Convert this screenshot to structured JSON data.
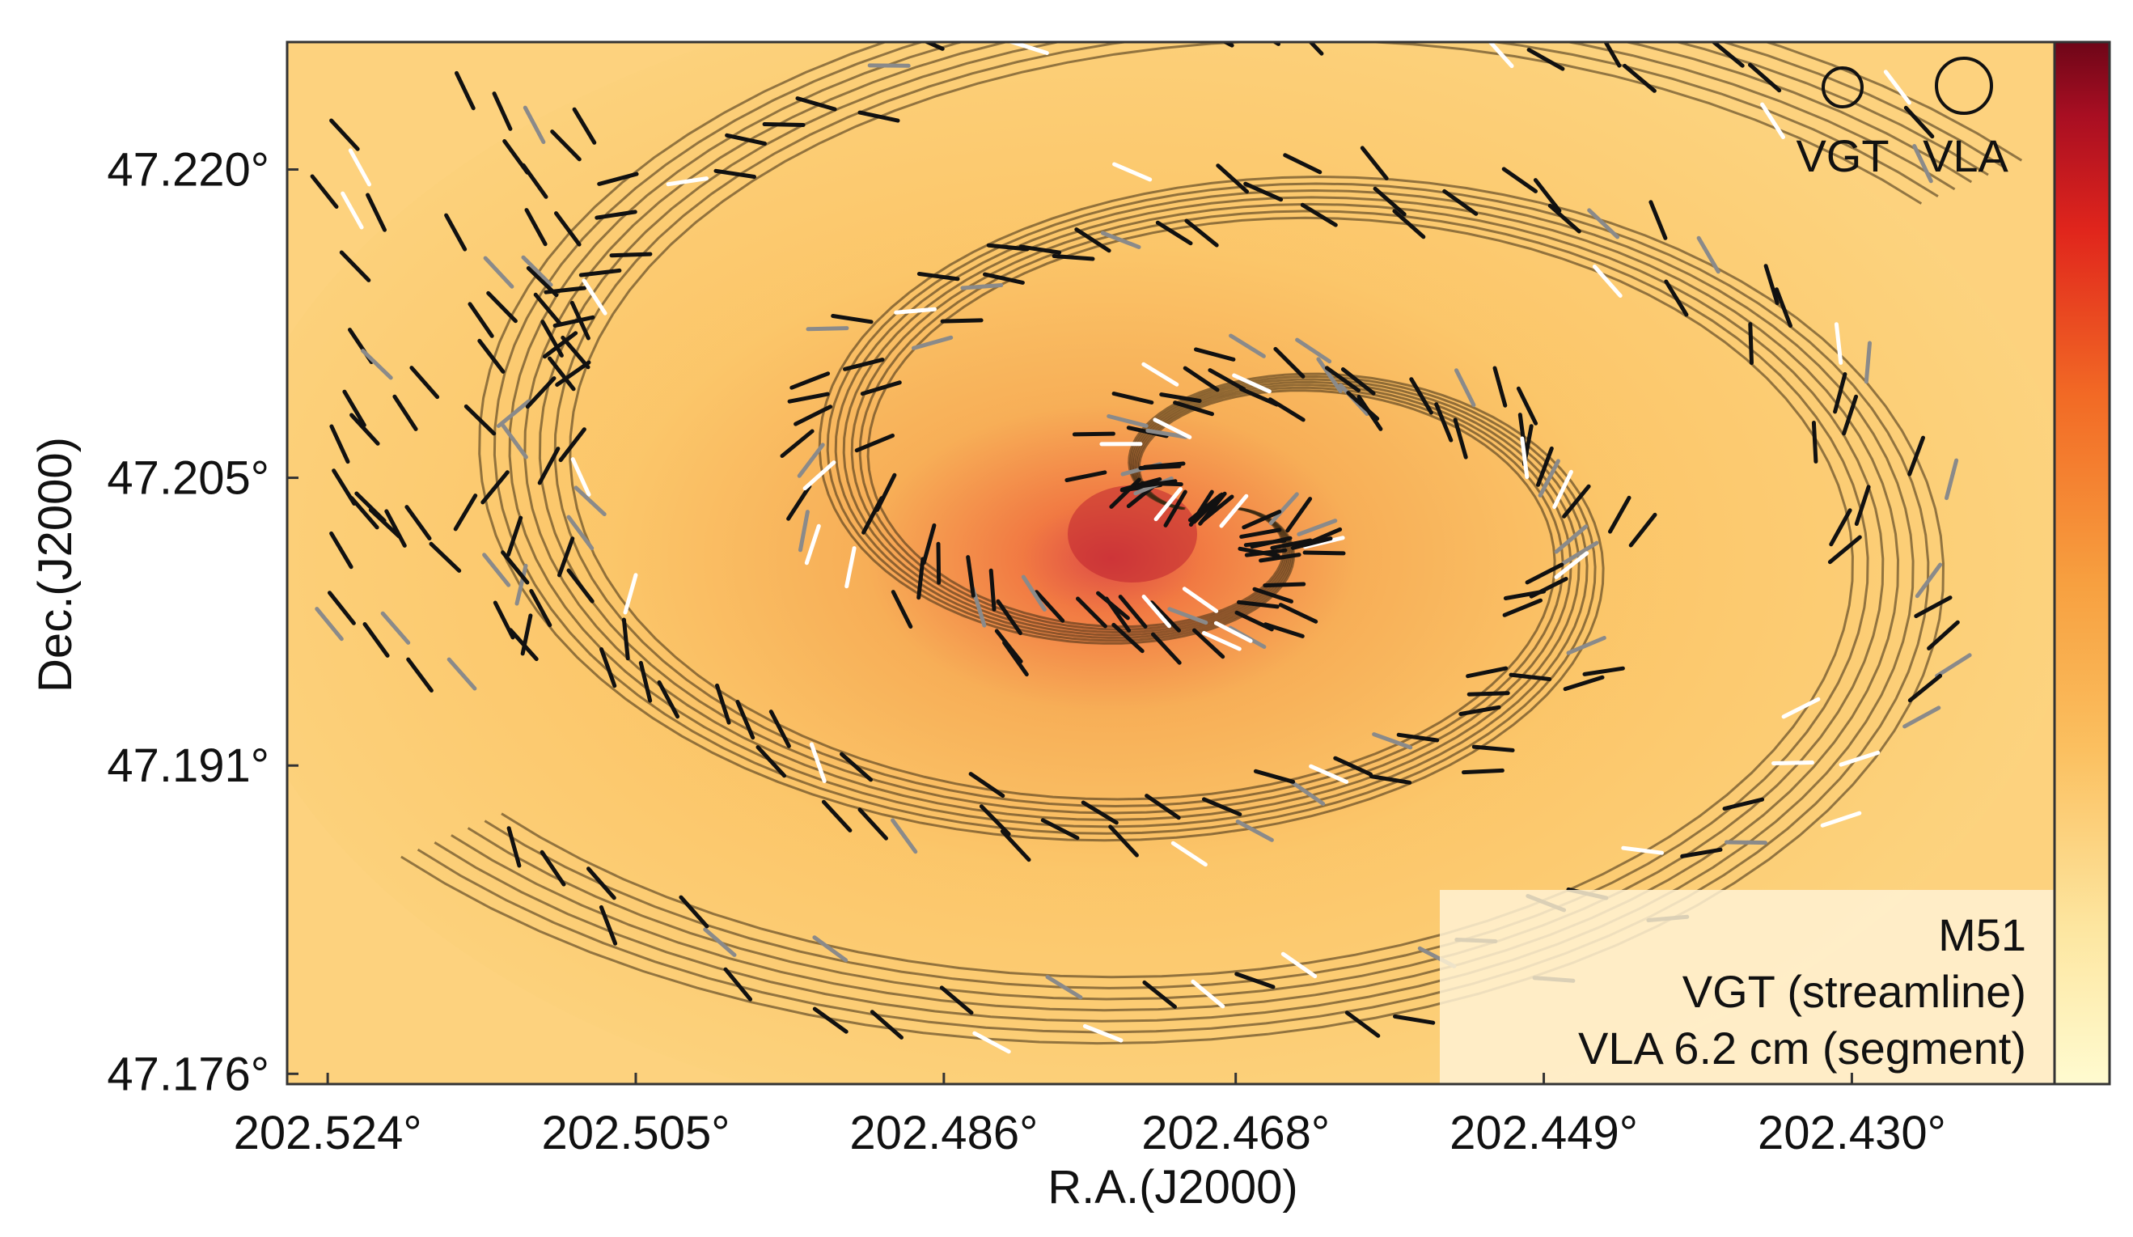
{
  "chart_data": {
    "type": "scatter",
    "xlabel": "R.A.(J2000)",
    "ylabel": "Dec.(J2000)",
    "x_ticks": [
      "202.524°",
      "202.505°",
      "202.486°",
      "202.468°",
      "202.449°",
      "202.430°"
    ],
    "y_ticks": [
      "47.220°",
      "47.205°",
      "47.191°",
      "47.176°"
    ],
    "x_tick_values": [
      202.524,
      202.505,
      202.486,
      202.468,
      202.449,
      202.43
    ],
    "y_tick_values": [
      47.22,
      47.205,
      47.191,
      47.176
    ],
    "xlim": [
      202.5265,
      202.4175
    ],
    "ylim": [
      47.1755,
      47.2262
    ],
    "x_reversed": true,
    "background": "M51 intensity map (orange, bright spiral core)",
    "colorbar": {
      "colors": [
        "#fffbd0",
        "#fde6a0",
        "#fbc060",
        "#f7a040",
        "#f26a25",
        "#e0251c",
        "#a80e22",
        "#6e0618"
      ]
    },
    "spiral": {
      "center": [
        202.4695,
        47.2035
      ],
      "arms": [
        {
          "name": "",
          "start_angle_deg": 180,
          "turns": 1.4
        },
        {
          "name": "",
          "start_angle_deg": 0,
          "turns": 1.4
        }
      ]
    },
    "legend": {
      "items": [
        {
          "label": "VGT",
          "marker": "small-circle"
        },
        {
          "label": "VLA",
          "marker": "large-circle"
        }
      ],
      "position": "top-right"
    },
    "annotation": {
      "lines": [
        "M51",
        "VGT (streamline)",
        "VLA 6.2 cm (segment)"
      ],
      "position": "bottom-right"
    },
    "series": [
      {
        "name": "VGT (streamline)",
        "color": "#3a2a12"
      },
      {
        "name": "VLA 6.2 cm (segment)",
        "colors": [
          "#111111",
          "#8a8a8a",
          "#ffffff"
        ]
      }
    ]
  }
}
